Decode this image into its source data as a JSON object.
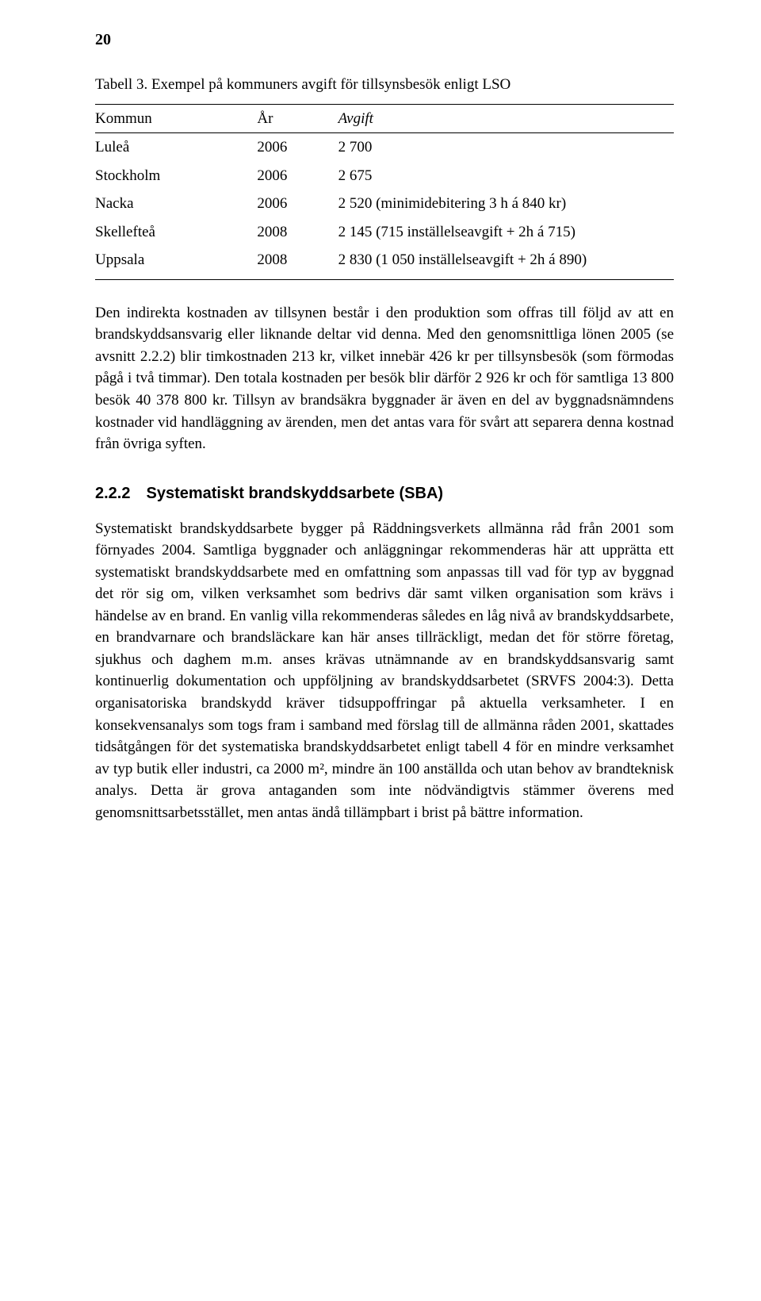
{
  "page_number": "20",
  "table": {
    "caption": "Tabell 3. Exempel på kommuners avgift för tillsynsbesök enligt LSO",
    "columns": [
      "Kommun",
      "År",
      "Avgift"
    ],
    "rows": [
      {
        "kommun": "Luleå",
        "ar": "2006",
        "avgift": "2 700"
      },
      {
        "kommun": "Stockholm",
        "ar": "2006",
        "avgift": "2 675"
      },
      {
        "kommun": "Nacka",
        "ar": "2006",
        "avgift": "2 520 (minimidebitering 3 h á 840 kr)"
      },
      {
        "kommun": "Skellefteå",
        "ar": "2008",
        "avgift": "2 145 (715 inställelseavgift + 2h á 715)"
      },
      {
        "kommun": "Uppsala",
        "ar": "2008",
        "avgift": "2 830 (1 050 inställelseavgift + 2h á 890)"
      }
    ]
  },
  "paragraph1": "Den indirekta kostnaden av tillsynen består i den produktion som offras till följd av att en brandskyddsansvarig eller liknande deltar vid denna. Med den genomsnittliga lönen 2005 (se avsnitt 2.2.2) blir timkostnaden 213 kr, vilket innebär 426 kr per tillsynsbesök (som förmodas pågå i två timmar). Den totala kostnaden per besök blir därför 2 926 kr och för samtliga 13 800 besök 40 378 800 kr. Tillsyn av brandsäkra byggnader är även en del av byggnadsnämndens kostnader vid handläggning av ärenden, men det antas vara för svårt att separera denna kostnad från övriga syften.",
  "heading": {
    "number": "2.2.2",
    "title": "Systematiskt brandskyddsarbete (SBA)"
  },
  "paragraph2": "Systematiskt brandskyddsarbete bygger på Räddningsverkets allmänna råd från 2001 som förnyades 2004. Samtliga byggnader och anläggningar rekommenderas här att upprätta ett systematiskt brandskyddsarbete med en omfattning som anpassas till vad för typ av byggnad det rör sig om, vilken verksamhet som bedrivs där samt vilken organisation som krävs i händelse av en brand. En vanlig villa rekommenderas således en låg nivå av brandskyddsarbete, en brandvarnare och brandsläckare kan här anses tillräckligt, medan det för större företag, sjukhus och daghem m.m. anses krävas utnämnande av en brandskyddsansvarig samt kontinuerlig dokumentation och uppföljning av brandskyddsarbetet (SRVFS 2004:3). Detta organisatoriska brandskydd kräver tidsuppoffringar på aktuella verksamheter. I en konsekvensanalys som togs fram i samband med förslag till de allmänna råden 2001, skattades tidsåtgången för det systematiska brandskyddsarbetet enligt tabell 4 för en mindre verksamhet av typ butik eller industri, ca 2000 m², mindre än 100 anställda och utan behov av brandteknisk analys. Detta är grova antaganden som inte nödvändigtvis stämmer överens med genomsnittsarbetsstället, men antas ändå tillämpbart i brist på bättre information."
}
